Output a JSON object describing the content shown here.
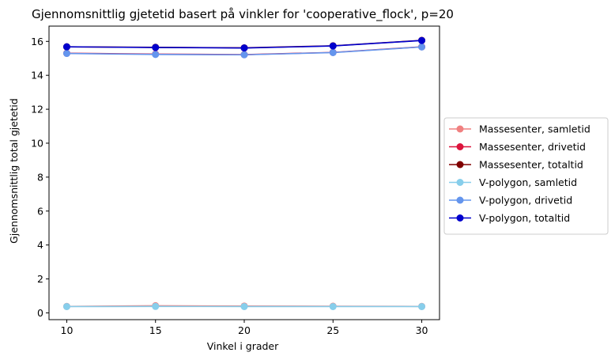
{
  "chart_data": {
    "type": "line",
    "title": "Gjennomsnittlig gjetetid basert på vinkler for 'cooperative_flock', p=20",
    "xlabel": "Vinkel i grader",
    "ylabel": "Gjennomsnittlig total gjetetid",
    "x": [
      10,
      15,
      20,
      25,
      30
    ],
    "xlim": [
      9,
      31
    ],
    "ylim": [
      -0.4,
      16.9
    ],
    "xticks": [
      "10",
      "15",
      "20",
      "25",
      "30"
    ],
    "yticks": [
      "0",
      "2",
      "4",
      "6",
      "8",
      "10",
      "12",
      "14",
      "16"
    ],
    "grid": false,
    "legend_position": "center-right-outside",
    "series": [
      {
        "name": "Massesenter, samletid",
        "color": "#f08080",
        "values": [
          0.38,
          0.42,
          0.4,
          0.39,
          0.38
        ]
      },
      {
        "name": "Massesenter, drivetid",
        "color": "#dc143c",
        "values": [
          15.3,
          15.25,
          15.22,
          15.35,
          15.68
        ]
      },
      {
        "name": "Massesenter, totaltid",
        "color": "#800000",
        "values": [
          15.68,
          15.65,
          15.62,
          15.74,
          16.06
        ]
      },
      {
        "name": "V-polygon, samletid",
        "color": "#87ceeb",
        "values": [
          0.37,
          0.38,
          0.37,
          0.37,
          0.37
        ]
      },
      {
        "name": "V-polygon, drivetid",
        "color": "#6495ed",
        "values": [
          15.29,
          15.23,
          15.21,
          15.34,
          15.67
        ]
      },
      {
        "name": "V-polygon, totaltid",
        "color": "#0000cd",
        "values": [
          15.68,
          15.64,
          15.61,
          15.73,
          16.05
        ]
      }
    ]
  }
}
